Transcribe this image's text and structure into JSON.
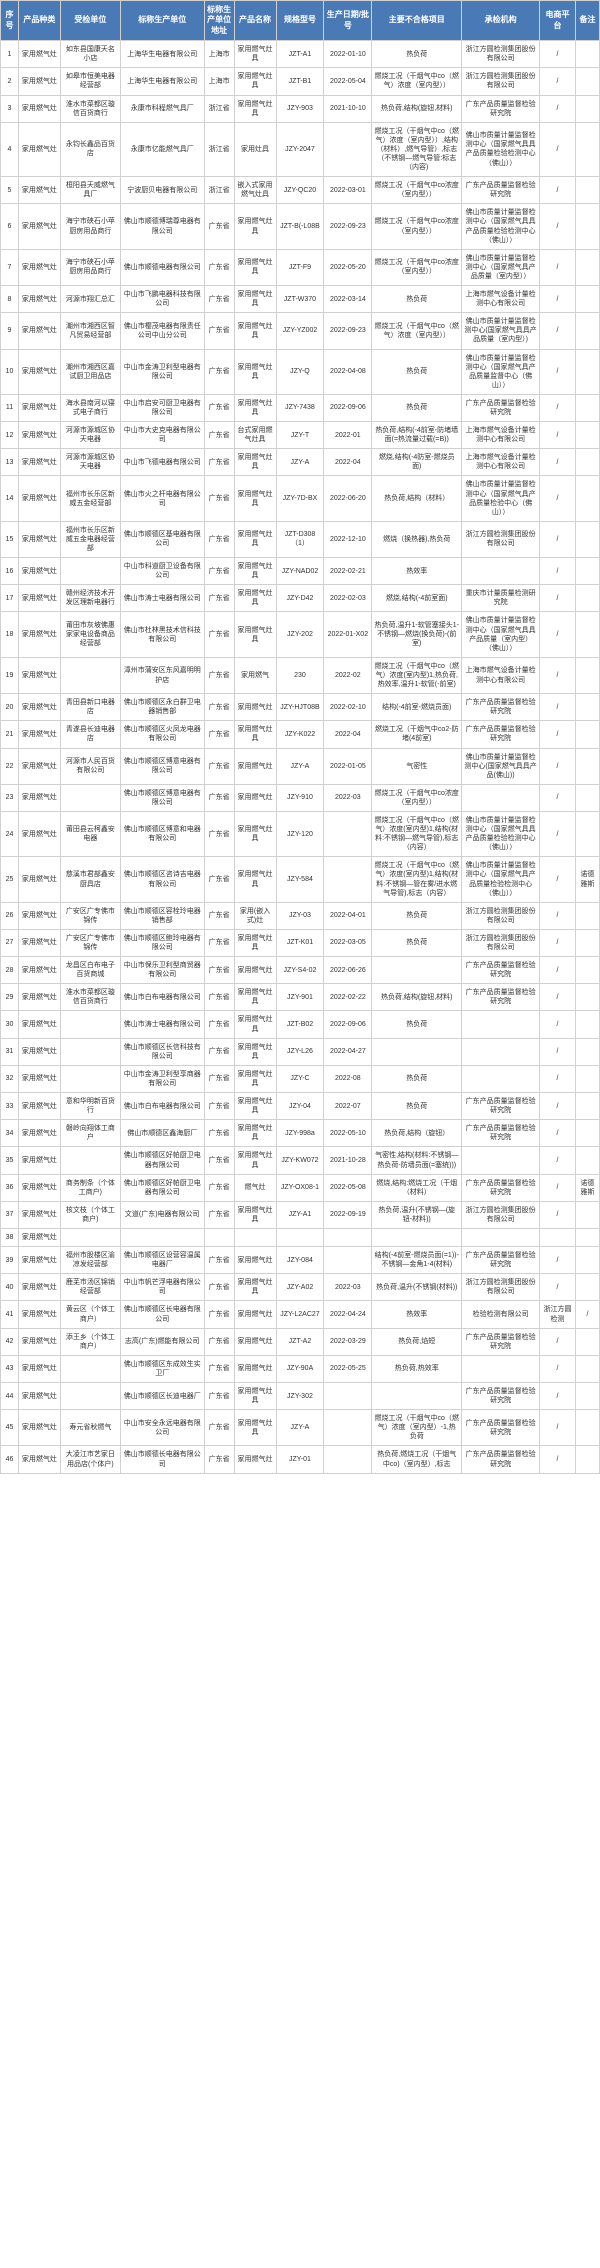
{
  "headers": [
    "序号",
    "产品种类",
    "受检单位",
    "标称生产单位",
    "标称生产单位地址",
    "产品名称",
    "规格型号",
    "生产日期/批号",
    "主要不合格项目",
    "承检机构",
    "电商平台",
    "备注"
  ],
  "rows": [
    [
      "1",
      "家用燃气灶",
      "如东县国康天名小店",
      "上海华生电器有限公司",
      "上海市",
      "家用燃气灶具",
      "JZT-A1",
      "2022-01-10",
      "热负荷",
      "浙江方圆检测集团股份有限公司",
      "/",
      ""
    ],
    [
      "2",
      "家用燃气灶",
      "如皋市恒美电器经营部",
      "上海华生电器有限公司",
      "上海市",
      "家用燃气灶具",
      "JZT-B1",
      "2022-05-04",
      "燃烧工况（干烟气中co（燃气）浓度（室内型））",
      "浙江方圆检测集团股份有限公司",
      "/",
      ""
    ],
    [
      "3",
      "家用燃气灶",
      "淮水市菜都区璇信百货商行",
      "永康市科程燃气具厂",
      "浙江省",
      "家用燃气灶具",
      "JZY-903",
      "2021-10-10",
      "热负荷,结构(旋钮,材料)",
      "广东产品质量监督检验研究院",
      "/",
      ""
    ],
    [
      "4",
      "家用燃气灶",
      "永钧长鑫品百货店",
      "永康市亿能燃气具厂",
      "浙江省",
      "家用灶具",
      "JZY-2047",
      "",
      "燃烧工况（干烟气中co（燃气）浓度（室内型））,结构（材料）,燃气导管）,标志（不锈钢—燃气导管:标志（内容)",
      "佛山市质量计量监督检测中心（国家燃气具具产品质量检验检测中心（佛山））",
      "/",
      ""
    ],
    [
      "5",
      "家用燃气灶",
      "桓阳县天威燃气具厂",
      "宁波厨贝电器有限公司",
      "浙江省",
      "嵌入式家用燃气灶具",
      "JZY-QC20",
      "2022-03-01",
      "燃烧工况（干烟气中co浓度（室内型））",
      "广东产品质量监督检验研究院",
      "/",
      ""
    ],
    [
      "6",
      "家用燃气灶",
      "海宁市硖石小苹厨房用品商行",
      "佛山市顺德博瑞尊电器有限公司",
      "广东省",
      "家用燃气灶具",
      "JZT-B(-L08B",
      "2022-09-23",
      "燃烧工况（干烟气中co浓度（室内型））",
      "佛山市质量计量监督检测中心（国家燃气具具产品质量检验检测中心（佛山））",
      "/",
      ""
    ],
    [
      "7",
      "家用燃气灶",
      "海宁市硖石小苹厨房用品商行",
      "佛山市顺德电器有限公司",
      "广东省",
      "家用燃气灶具",
      "JZT-F9",
      "2022-05-20",
      "燃烧工况（干烟气中co浓度（室内型））",
      "佛山市质量计量监督检测中心（国家燃气具产品质量（室内型））",
      "/",
      ""
    ],
    [
      "8",
      "家用燃气灶",
      "河源市翔汇总汇",
      "中山市飞鹏电器科技有限公司",
      "广东省",
      "家用燃气灶具",
      "JZT-W370",
      "2022-03-14",
      "热负荷",
      "上海市燃气设备计量检测中心有限公司",
      "/",
      ""
    ],
    [
      "9",
      "家用燃气灶",
      "潮州市湘西区智凡贸易经营部",
      "佛山市樱茂电器有限责任公司中山分公司",
      "广东省",
      "家用燃气灶具",
      "JZY-YZ002",
      "2022-09-23",
      "燃烧工况（干烟气中co（燃气）浓度（室内型））",
      "佛山市质量计量监督检测中心(国家燃气具具产品质量（室内型）)",
      "/",
      ""
    ],
    [
      "10",
      "家用燃气灶",
      "潮州市湘西区嘉试厨卫用品店",
      "中山市金涛卫利型电器有限公司",
      "广东省",
      "家用燃气灶具",
      "JZY-Q",
      "2022-04-08",
      "热负荷",
      "佛山市质量计量监督检测中心（国家燃气具产品质量监督中心（佛山））",
      "/",
      ""
    ],
    [
      "11",
      "家用燃气灶",
      "海水县南河以寝式电子商行",
      "中山市启安可厨卫电器有限公司",
      "广东省",
      "家用燃气灶具",
      "JZY-7438",
      "2022-09-06",
      "热负荷",
      "广东产品质量监督检验研究院",
      "/",
      ""
    ],
    [
      "12",
      "家用燃气灶",
      "河源市源城区协天电器",
      "中山市大史克电器有限公司",
      "广东省",
      "台式家用燃气灶具",
      "JZY-T",
      "2022-01",
      "热负荷,结构(-4前室-防堵墙面(=热流量过载(=B))",
      "上海市燃气设备计量检测中心有限公司",
      "/",
      ""
    ],
    [
      "13",
      "家用燃气灶",
      "河源市源城区协天电器",
      "中山市飞德电器有限公司",
      "广东省",
      "家用燃气灶具",
      "JZY-A",
      "2022-04",
      "燃烧,结构(-4防室-燃烧员面)",
      "上海市燃气设备计量检测中心有限公司",
      "/",
      ""
    ],
    [
      "14",
      "家用燃气灶",
      "福州市长乐区新威五金经营部",
      "佛山市火之杆电器有限公司",
      "广东省",
      "家用燃气灶具",
      "JZY-7D-BX",
      "2022-06-20",
      "热负荷,结构（材料）",
      "佛山市质量计量监督检测中心（国家燃气具产品质量检验中心（佛山））",
      "/",
      ""
    ],
    [
      "15",
      "家用燃气灶",
      "福州市长乐区新威五金电器经营部",
      "佛山市顺德区基电器有限公司",
      "广东省",
      "家用燃气灶具",
      "JZT-D308（1）",
      "2022-12-10",
      "燃烧（换热器),热负荷",
      "浙江方圆检测集团股份有限公司",
      "/",
      ""
    ],
    [
      "16",
      "家用燃气灶",
      "",
      "中山市科道厨卫设备有限公司",
      "广东省",
      "家用燃气灶具",
      "JZY-NAD02",
      "2022-02-21",
      "热效率",
      "",
      "/",
      ""
    ],
    [
      "17",
      "家用燃气灶",
      "赣州经济技术开发区理新电器行",
      "佛山市涛士电器有限公司",
      "广东省",
      "家用燃气灶具",
      "JZY-D42",
      "2022-02-03",
      "燃烧,结构(-4前室面)",
      "重庆市计量质量检测研究院",
      "/",
      ""
    ],
    [
      "18",
      "家用燃气灶",
      "莆田市灰坡佛惠家家电设备商品经营部",
      "佛山市杜林黑技术信科技有限公司",
      "广东省",
      "家用燃气灶具",
      "JZY-202",
      "2022-01-X02",
      "热负荷,温升1-软管塞接头1-不锈钢—燃烧(换负荷)-(前室)",
      "佛山市质量计量监督检测中心（国家燃气具具产品质量（室内型）（佛山））",
      "/",
      ""
    ],
    [
      "19",
      "家用燃气灶",
      "",
      "漳州市蒲安区东风嘉明明护店",
      "广东省",
      "家用燃气",
      "230",
      "2022-02",
      "燃烧工况（干烟气中co（燃气）浓度(室内型)1,热负荷,热效率,温升1-软管(-前室)",
      "上海市燃气设备计量检测中心有限公司",
      "/",
      ""
    ],
    [
      "20",
      "家用燃气灶",
      "青田县新口电器店",
      "佛山市顺德区永白群卫电器销售部",
      "广东省",
      "家用燃气灶",
      "JZY-HJT08B",
      "2022-02-10",
      "结构(-4前室-燃烧员面)",
      "广东产品质量监督检验研究院",
      "/",
      ""
    ],
    [
      "21",
      "家用燃气灶",
      "青遂县长迪电器店",
      "佛山市顺德区火凤龙电器有限公司",
      "广东省",
      "家用燃气灶具",
      "JZY-K022",
      "2022-04",
      "燃烧工况（干烟气中co2-防堵(4前室)",
      "广东产品质量监督检验研究院",
      "/",
      ""
    ],
    [
      "22",
      "家用燃气灶",
      "河源市人民百货有限公司",
      "佛山市顺德区博意电器有限公司",
      "广东省",
      "家用燃气灶",
      "JZY-A",
      "2022-01-05",
      "气密性",
      "佛山市质量计量监督检测中心(国家燃气具具产品(佛山))",
      "/",
      ""
    ],
    [
      "23",
      "家用燃气灶",
      "",
      "佛山市顺德区博意电器有限公司",
      "广东省",
      "家用燃气灶",
      "JZY-910",
      "2022-03",
      "燃烧工况（干烟气中co浓度（室内型））",
      "",
      "/",
      ""
    ],
    [
      "24",
      "家用燃气灶",
      "莆田县云柯鑫安电器",
      "佛山市顺德区博意和电器有限公司",
      "广东省",
      "家用燃气灶具",
      "JZY-120",
      "",
      "燃烧工况（干烟气中co（燃气）浓度(室内型)1,结构(材料:不锈钢—燃气导管),标志（内容）",
      "佛山市质量计量监督检测中心（国家燃气具具产品质量检验检测中心（佛山））",
      "/",
      ""
    ],
    [
      "25",
      "家用燃气灶",
      "慈溪市君部鑫安厨具店",
      "佛山市顺德区咨诗吉电器有限公司",
      "广东省",
      "家用燃气灶具",
      "JZY-584",
      "",
      "燃烧工况（干烟气中co（燃气）浓度(室内型)1,结构(材料:不锈钢—管在雾/进水燃气导管),标志（内容）",
      "佛山市质量计量监督检测中心（国家燃气具产品质量检验检测中心（佛山））",
      "/",
      "诺德雅斯"
    ],
    [
      "26",
      "家用燃气灶",
      "广安区广专佛市锦传",
      "佛山市顺德区容栓玲电器销售部",
      "广东省",
      "家用(嵌入式)灶",
      "JZY-03",
      "2022-04-01",
      "热负荷",
      "浙江方圆检测集团股份有限公司",
      "/",
      ""
    ],
    [
      "27",
      "家用燃气灶",
      "广安区广专佛市锦传",
      "佛山市顺德区鲍玲电器有限公司",
      "广东省",
      "家用燃气灶具",
      "JZT-K01",
      "2022-03-05",
      "热负荷",
      "浙江方圆检测集团股份有限公司",
      "/",
      ""
    ],
    [
      "28",
      "家用燃气灶",
      "龙昌区白布电子百货商城",
      "中山市保乐卫利型商贸器有限公司",
      "广东省",
      "家用燃气灶",
      "JZY-S4-02",
      "2022-06-26",
      "",
      "广东产品质量监督检验研究院",
      "/",
      ""
    ],
    [
      "29",
      "家用燃气灶",
      "淮水市菜都区璇信百货商行",
      "佛山市白布电器有限公司",
      "广东省",
      "家用燃气灶具",
      "JZY-901",
      "2022-02-22",
      "热负荷,结构(旋钮,材料)",
      "广东产品质量监督检验研究院",
      "/",
      ""
    ],
    [
      "30",
      "家用燃气灶",
      "",
      "佛山市涛士电器有限公司",
      "广东省",
      "家用燃气灶具",
      "JZT-B02",
      "2022-09-06",
      "热负荷",
      "",
      "/",
      ""
    ],
    [
      "31",
      "家用燃气灶",
      "",
      "佛山市顺德区长信科技有限公司",
      "广东省",
      "家用燃气灶具",
      "JZY-L26",
      "2022-04-27",
      "",
      "",
      "/",
      ""
    ],
    [
      "32",
      "家用燃气灶",
      "",
      "中山市金涛卫利型享商器有限公司",
      "广东省",
      "家用燃气灶具",
      "JZY-C",
      "2022-08",
      "热负荷",
      "",
      "/",
      ""
    ],
    [
      "33",
      "家用燃气灶",
      "意和华明新百货行",
      "佛山市白布电器有限公司",
      "广东省",
      "家用燃气灶具",
      "JZY-04",
      "2022-07",
      "热负荷",
      "广东产品质量监督检验研究院",
      "/",
      ""
    ],
    [
      "34",
      "家用燃气灶",
      "磐岭向翔体工商户",
      "佛山市顺德区鑫海厨厂",
      "广东省",
      "家用燃气灶具",
      "JZY-998a",
      "2022-05-10",
      "热负荷,结构（旋钮）",
      "广东产品质量监督检验研究院",
      "/",
      ""
    ],
    [
      "35",
      "家用燃气灶",
      "",
      "佛山市顺德区好帕厨卫电器有限公司",
      "广东省",
      "家用燃气灶具",
      "JZY-KW072",
      "2021-10-28",
      "气密性,结构(材料:不锈钢—热负荷-防墙员面(=塞统)))",
      "",
      "/",
      ""
    ],
    [
      "36",
      "家用燃气灶",
      "商务制条（个体工商户)",
      "佛山市顺德区好帕厨卫电器有限公司",
      "广东省",
      "燃气灶",
      "JZY-OX08-1",
      "2022-05-08",
      "燃烧,结构:燃烧工况（干烟（材料）",
      "广东产品质量监督检验研究院",
      "/",
      "诺德雅斯"
    ],
    [
      "37",
      "家用燃气灶",
      "核文枝（个体工商户)",
      "文道(广东)电器有限公司",
      "广东省",
      "家用燃气灶具",
      "JZY-A1",
      "2022-09-19",
      "热负荷,温升(不锈钢—(旋钮-材料))",
      "浙江方圆检测集团股份有限公司",
      "/",
      ""
    ],
    [
      "38",
      "家用燃气灶",
      "",
      "",
      "",
      "",
      "",
      "",
      "",
      "",
      "",
      ""
    ],
    [
      "39",
      "家用燃气灶",
      "福州市股楼区渝凉发经营部",
      "佛山市顺德区设营容温属电器厂",
      "广东省",
      "家用燃气灶",
      "JZY-084",
      "",
      "结构(-4前室-燃烧员面(=1))-不锈钢—金角1-4(材料)",
      "广东产品质量监督检验研究院",
      "/",
      ""
    ],
    [
      "40",
      "家用燃气灶",
      "鹿芜市汤区锦销经营部",
      "中山市帆芒浮电器有限公司",
      "广东省",
      "家用燃气灶具",
      "JZY-A02",
      "2022-03",
      "热负荷,温升(不锈钢(材料))",
      "浙江方圆检测集团股份有限公司",
      "/",
      ""
    ],
    [
      "41",
      "家用燃气灶",
      "黄云区（个体工商户）",
      "佛山市顺德区长电器有限公司",
      "广东省",
      "家用燃气灶",
      "JZY-L2AC27",
      "2022-04-24",
      "热效率",
      "检验检测有限公司",
      "浙江方圆检测",
      "/"
    ],
    [
      "42",
      "家用燃气灶",
      "添王乡（个体工商户）",
      "志高(广东)燃能有限公司",
      "广东省",
      "家用燃气灶",
      "JZT-A2",
      "2022-03-29",
      "热负荷,焰短",
      "广东产品质量监督检验研究院",
      "/",
      ""
    ],
    [
      "43",
      "家用燃气灶",
      "",
      "佛山市顺德区东成效生实卫厂",
      "广东省",
      "家用燃气灶",
      "JZY-90A",
      "2022-05-25",
      "热负荷,热效率",
      "",
      "/",
      ""
    ],
    [
      "44",
      "家用燃气灶",
      "",
      "佛山市顺德区长迪电器厂",
      "广东省",
      "家用燃气灶具",
      "JZY-302",
      "",
      "",
      "广东产品质量监督检验研究院",
      "/",
      ""
    ],
    [
      "45",
      "家用燃气灶",
      "寿元省秋燃气",
      "中山市安全永远电器有限公司",
      "广东省",
      "家用燃气灶具",
      "JZY-A",
      "",
      "燃烧工况（干烟气中co（燃气）浓度（室内型）-1,热负荷",
      "广东产品质量监督检验研究院",
      "/",
      ""
    ],
    [
      "46",
      "家用燃气灶",
      "大凌江市艺家日用品店(个体户)",
      "佛山市顺德长电器有限公司",
      "广东省",
      "家用燃气灶",
      "JZY-01",
      "",
      "热负荷,燃烧工况（干烟气中co)（室内型）,标志",
      "广东产品质量监督检验研究院",
      "/",
      ""
    ]
  ]
}
